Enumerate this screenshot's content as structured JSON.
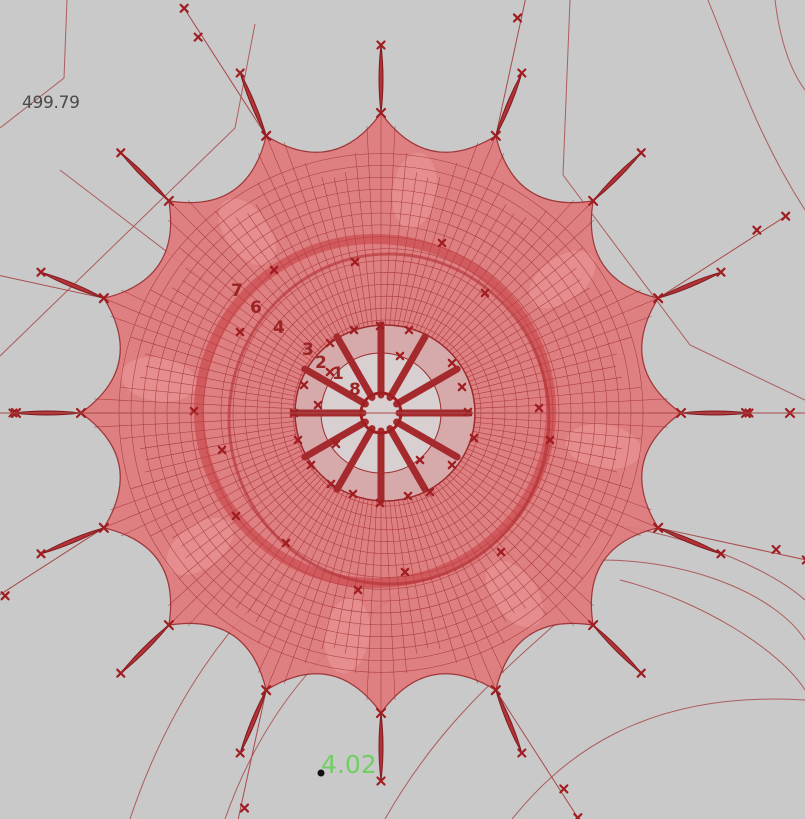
{
  "viewport": {
    "background": "#c9c9c9",
    "dimension_label": "499.79",
    "distance_label": "4.02",
    "index_labels": [
      "7",
      "6",
      "4",
      "3",
      "2",
      "1",
      "8"
    ],
    "cable_count": 16,
    "inner_spoke_count": 12,
    "colors": {
      "membrane_fill": "#e0797b",
      "membrane_light": "#eda0a1",
      "mesh_line": "#9c2a2d",
      "marker": "#a01e22",
      "guide_curve": "#a84a4a",
      "distance_text": "#6fcf62",
      "dimension_text": "#4a4a4a"
    },
    "icons": [
      "cross-marker-icon",
      "point-marker-icon"
    ]
  }
}
